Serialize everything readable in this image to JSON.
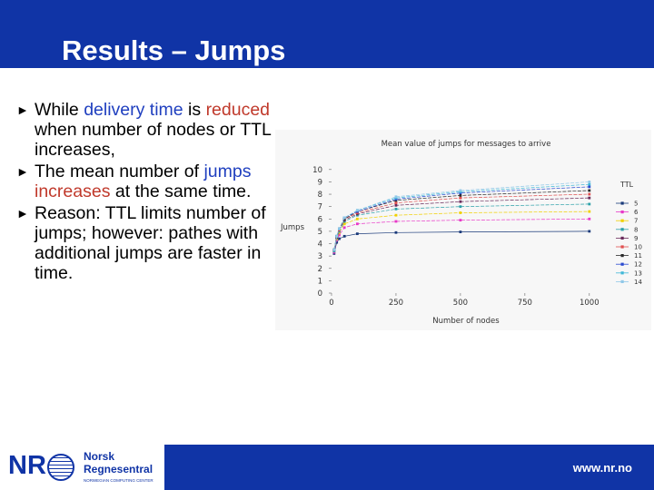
{
  "slide": {
    "title": "Results – Jumps",
    "bullets": [
      {
        "parts": [
          {
            "text": "While ",
            "style": ""
          },
          {
            "text": "delivery time",
            "style": "blue"
          },
          {
            "text": " is ",
            "style": ""
          },
          {
            "text": "reduced",
            "style": "red"
          },
          {
            "text": " when number of nodes or TTL increases,",
            "style": ""
          }
        ]
      },
      {
        "parts": [
          {
            "text": "The mean number of ",
            "style": ""
          },
          {
            "text": "jumps",
            "style": "blue"
          },
          {
            "text": " ",
            "style": ""
          },
          {
            "text": "increases",
            "style": "red"
          },
          {
            "text": " at the same time.",
            "style": ""
          }
        ]
      },
      {
        "parts": [
          {
            "text": "Reason: TTL limits number of jumps; however: pathes with additional jumps are faster in time.",
            "style": ""
          }
        ]
      }
    ],
    "bullet_marker": "►"
  },
  "footer": {
    "logo_letters": "NR",
    "logo_name_line1": "Norsk",
    "logo_name_line2": "Regnesentral",
    "logo_subtitle": "NORWEGIAN COMPUTING CENTER",
    "url": "www.nr.no"
  },
  "colors": {
    "header_bar": "#1034a6",
    "accent_blue": "#1f3fbf",
    "accent_red": "#c0392b"
  },
  "chart_data": {
    "type": "line",
    "title": "Mean value of jumps for messages to arrive",
    "xlabel": "Number of nodes",
    "ylabel": "Jumps",
    "x": [
      10,
      20,
      30,
      50,
      100,
      250,
      500,
      1000
    ],
    "xticks": [
      0,
      250,
      500,
      750,
      1000
    ],
    "yticks": [
      0,
      1,
      2,
      3,
      4,
      5,
      6,
      7,
      8,
      9,
      10
    ],
    "xlim": [
      0,
      1050
    ],
    "ylim": [
      0,
      10.5
    ],
    "legend_title": "TTL",
    "legend_position": "right",
    "grid": false,
    "series": [
      {
        "name": "5",
        "color": "#1a3a7a",
        "values": [
          3.2,
          4.1,
          4.4,
          4.6,
          4.8,
          4.9,
          4.95,
          5.0
        ]
      },
      {
        "name": "6",
        "color": "#e838c8",
        "values": [
          3.3,
          4.3,
          4.7,
          5.3,
          5.6,
          5.8,
          5.9,
          6.0
        ]
      },
      {
        "name": "7",
        "color": "#f0d000",
        "values": [
          3.4,
          4.4,
          4.9,
          5.6,
          6.0,
          6.3,
          6.5,
          6.6
        ]
      },
      {
        "name": "8",
        "color": "#2aa0a8",
        "values": [
          3.4,
          4.5,
          5.0,
          5.8,
          6.3,
          6.8,
          7.0,
          7.2
        ]
      },
      {
        "name": "9",
        "color": "#6a2a5a",
        "values": [
          3.5,
          4.5,
          5.1,
          5.9,
          6.4,
          7.1,
          7.4,
          7.7
        ]
      },
      {
        "name": "10",
        "color": "#e05050",
        "values": [
          3.5,
          4.6,
          5.1,
          6.0,
          6.5,
          7.3,
          7.7,
          8.0
        ]
      },
      {
        "name": "11",
        "color": "#2a2a2a",
        "values": [
          3.5,
          4.6,
          5.2,
          6.0,
          6.6,
          7.5,
          7.9,
          8.3
        ]
      },
      {
        "name": "12",
        "color": "#2a4ad0",
        "values": [
          3.5,
          4.6,
          5.2,
          6.1,
          6.6,
          7.6,
          8.1,
          8.6
        ]
      },
      {
        "name": "13",
        "color": "#40b8d8",
        "values": [
          3.5,
          4.6,
          5.2,
          6.1,
          6.7,
          7.7,
          8.2,
          8.8
        ]
      },
      {
        "name": "14",
        "color": "#90c8e8",
        "values": [
          3.5,
          4.6,
          5.2,
          6.1,
          6.7,
          7.8,
          8.3,
          9.0
        ]
      }
    ]
  }
}
